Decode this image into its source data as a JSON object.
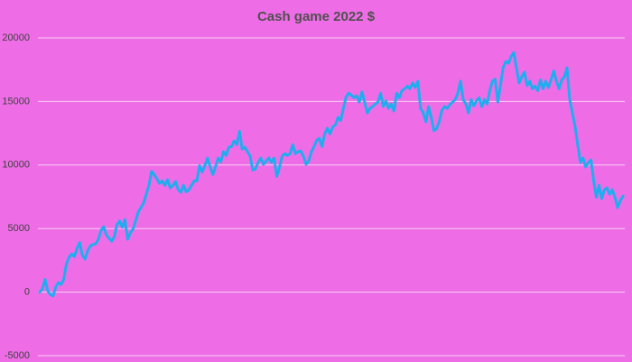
{
  "chart_data": {
    "type": "line",
    "title": "Cash game 2022 $",
    "series": [
      {
        "color": "#1eaef0",
        "values": [
          0,
          250,
          1000,
          100,
          -200,
          -300,
          400,
          750,
          600,
          1000,
          2200,
          2750,
          3000,
          2800,
          3450,
          3900,
          2900,
          2600,
          3250,
          3650,
          3750,
          3800,
          4150,
          4850,
          5150,
          4500,
          4250,
          4000,
          4350,
          5300,
          5600,
          5100,
          5700,
          4150,
          4650,
          4950,
          5600,
          6300,
          6650,
          7000,
          7700,
          8400,
          9500,
          9250,
          8900,
          8550,
          8750,
          8400,
          8850,
          8200,
          8400,
          8700,
          8050,
          7850,
          8400,
          7900,
          8050,
          8400,
          8750,
          8750,
          9950,
          9450,
          9950,
          10550,
          9850,
          9250,
          9850,
          10550,
          10250,
          11050,
          10750,
          11400,
          11450,
          11900,
          11600,
          12650,
          11250,
          11400,
          11050,
          10700,
          9600,
          9700,
          10200,
          10550,
          10050,
          10300,
          10550,
          10200,
          10550,
          9100,
          9800,
          10700,
          10900,
          10750,
          10900,
          11600,
          10900,
          11050,
          11100,
          10700,
          10050,
          10300,
          11050,
          11450,
          11950,
          12100,
          11450,
          12450,
          12900,
          12450,
          13000,
          13150,
          13750,
          13500,
          14450,
          15350,
          15650,
          15500,
          15300,
          15450,
          14950,
          15750,
          14950,
          14100,
          14450,
          14600,
          14800,
          14950,
          15650,
          14600,
          15050,
          14450,
          14800,
          14250,
          15650,
          15300,
          15850,
          16000,
          16200,
          16000,
          16450,
          16100,
          16600,
          14450,
          14100,
          13400,
          14600,
          13750,
          12700,
          12850,
          13400,
          14300,
          14600,
          14450,
          14750,
          14950,
          15150,
          15650,
          16600,
          15150,
          14800,
          14100,
          15150,
          14650,
          15050,
          15300,
          14600,
          15150,
          14800,
          15850,
          16600,
          16750,
          14950,
          16250,
          17650,
          18150,
          18000,
          18550,
          18850,
          17650,
          16450,
          16950,
          17300,
          16250,
          16600,
          16000,
          16200,
          15850,
          16700,
          16000,
          16600,
          16100,
          16700,
          17400,
          16600,
          16000,
          16700,
          16950,
          17650,
          15150,
          14100,
          13050,
          11600,
          10200,
          10550,
          9850,
          10200,
          10400,
          8750,
          7450,
          8400,
          7350,
          8050,
          8200,
          7700,
          8050,
          7450,
          6650,
          7200,
          7550
        ]
      }
    ],
    "ylim": [
      -5000,
      20000
    ],
    "yticks": [
      -5000,
      0,
      5000,
      10000,
      15000,
      20000
    ],
    "grid": true,
    "background": "#ee6de6"
  }
}
